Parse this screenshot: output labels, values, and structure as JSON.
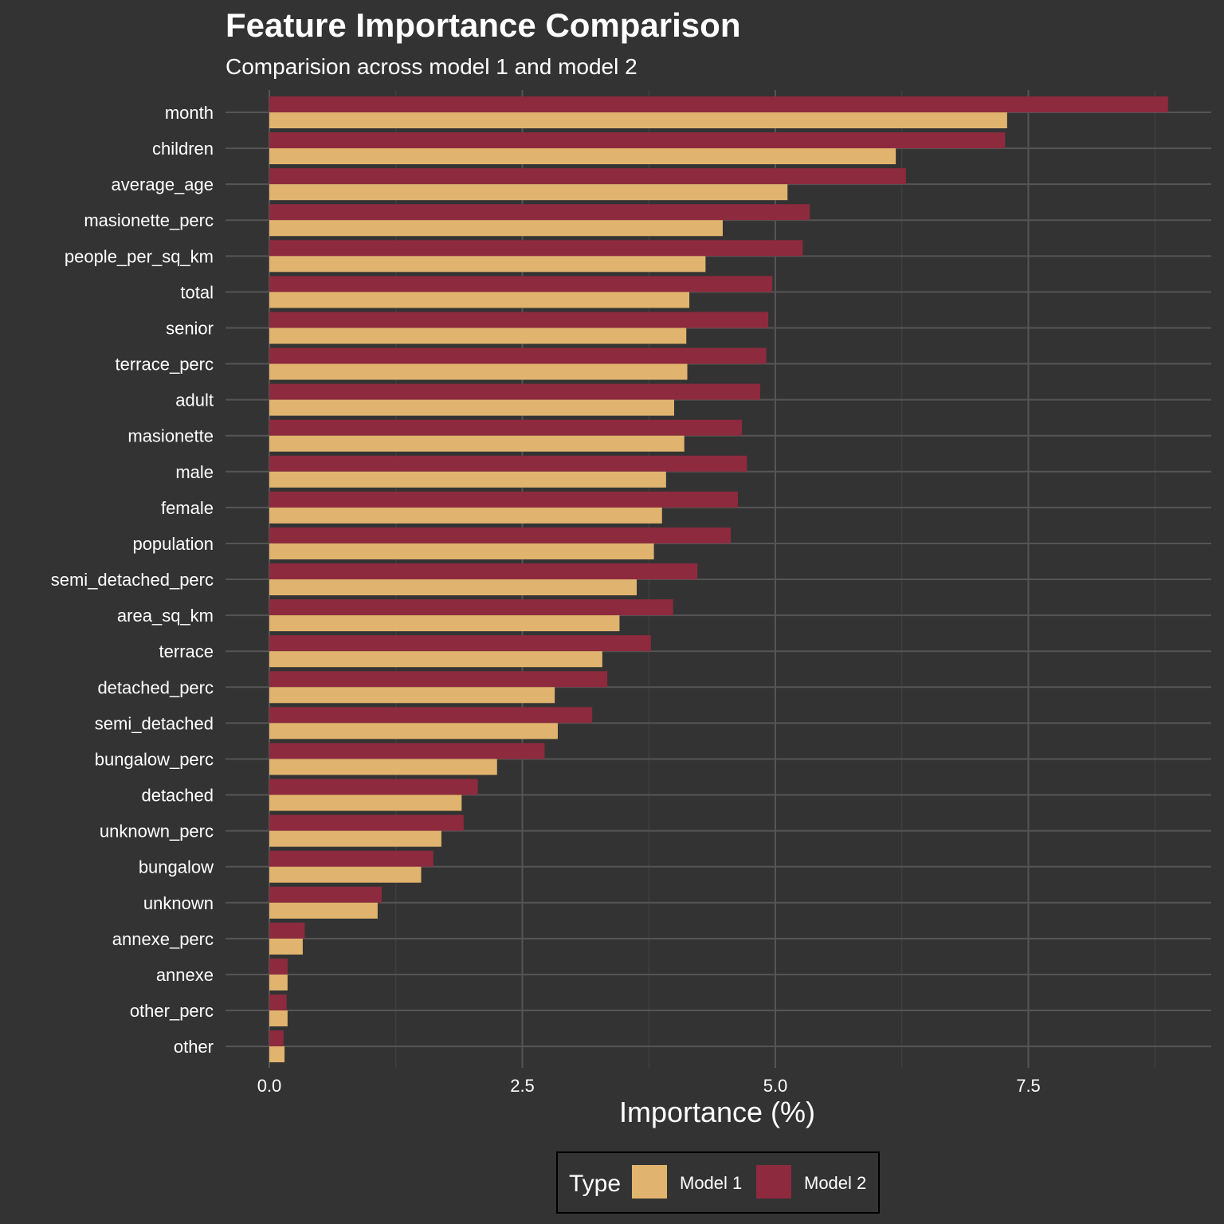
{
  "chart_data": {
    "type": "bar",
    "orientation": "horizontal",
    "title": "Feature Importance Comparison",
    "subtitle": "Comparision across model 1 and model 2",
    "xlabel": "Importance (%)",
    "ylabel": "",
    "xlim": [
      0,
      9.3
    ],
    "x_ticks": [
      "0.0",
      "2.5",
      "5.0",
      "7.5"
    ],
    "grid": true,
    "legend": {
      "title": "Type",
      "position": "bottom"
    },
    "categories": [
      "month",
      "children",
      "average_age",
      "masionette_perc",
      "people_per_sq_km",
      "total",
      "senior",
      "terrace_perc",
      "adult",
      "masionette",
      "male",
      "female",
      "population",
      "semi_detached_perc",
      "area_sq_km",
      "terrace",
      "detached_perc",
      "semi_detached",
      "bungalow_perc",
      "detached",
      "unknown_perc",
      "bungalow",
      "unknown",
      "annexe_perc",
      "annexe",
      "other_perc",
      "other"
    ],
    "series": [
      {
        "name": "Model 1",
        "color": "#E0B46E",
        "values": [
          7.29,
          6.19,
          5.12,
          4.48,
          4.31,
          4.15,
          4.12,
          4.13,
          4.0,
          4.1,
          3.92,
          3.88,
          3.8,
          3.63,
          3.46,
          3.29,
          2.82,
          2.85,
          2.25,
          1.9,
          1.7,
          1.5,
          1.07,
          0.33,
          0.18,
          0.18,
          0.15
        ]
      },
      {
        "name": "Model 2",
        "color": "#8E2A3E",
        "values": [
          8.88,
          7.27,
          6.29,
          5.34,
          5.27,
          4.97,
          4.93,
          4.91,
          4.85,
          4.67,
          4.72,
          4.63,
          4.56,
          4.23,
          3.99,
          3.77,
          3.34,
          3.19,
          2.72,
          2.06,
          1.92,
          1.62,
          1.11,
          0.35,
          0.18,
          0.17,
          0.14
        ]
      }
    ]
  }
}
